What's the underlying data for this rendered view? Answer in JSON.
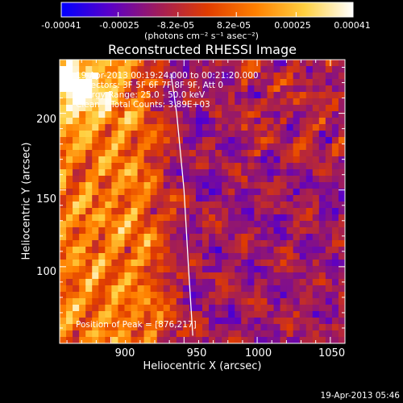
{
  "colorbar": {
    "ticks": [
      "-0.00041",
      "-0.00025",
      "-8.2e-05",
      "8.2e-05",
      "0.00025",
      "0.00041"
    ],
    "unit_label": "(photons cm⁻² s⁻¹ asec⁻²)",
    "range": [
      -0.00041,
      0.00041
    ],
    "colormap": [
      "#0000ff",
      "#5a00c8",
      "#a01c5a",
      "#e03c00",
      "#ff8000",
      "#ffd040",
      "#ffffff"
    ]
  },
  "chart_data": {
    "type": "heatmap",
    "title": "Reconstructed RHESSI Image",
    "xlabel": "Heliocentric X (arcsec)",
    "ylabel": "Heliocentric Y (arcsec)",
    "xlim": [
      865,
      1060
    ],
    "ylim": [
      50,
      235
    ],
    "x_ticks": [
      900,
      950,
      1000,
      1050
    ],
    "y_ticks": [
      100,
      150,
      200
    ],
    "limb_curve": [
      [
        941,
        226
      ],
      [
        945,
        200
      ],
      [
        950,
        150
      ],
      [
        953,
        100
      ],
      [
        956,
        55
      ]
    ],
    "peak": [
      876,
      217
    ],
    "annotations": {
      "time": "19-Apr-2013 00:19:24.000 to 00:21:20.000",
      "detectors": "Detectors: 3F 5F 6F 7F 8F 9F, Att 0",
      "energy": "Energy Range: 25.0 - 50.0 keV",
      "method": "Clean    Total Counts: 3.89E+03",
      "peak": "Position of Peak = [876,217]"
    },
    "grid": false
  },
  "footer": {
    "timestamp": "19-Apr-2013 05:46"
  }
}
